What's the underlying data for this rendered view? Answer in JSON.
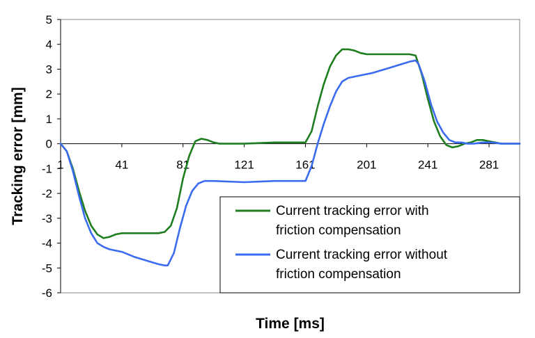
{
  "chart_data": {
    "type": "line",
    "xlabel": "Time [ms]",
    "ylabel": "Tracking error [mm]",
    "xlim": [
      1,
      301
    ],
    "ylim": [
      -6,
      5
    ],
    "x_ticks": [
      "1",
      "41",
      "81",
      "121",
      "161",
      "201",
      "241",
      "281"
    ],
    "y_ticks": [
      "5",
      "4",
      "3",
      "2",
      "1",
      "0",
      "-1",
      "-2",
      "-3",
      "-4",
      "-5",
      "-6"
    ],
    "grid": false,
    "legend_position": "bottom-right",
    "series": [
      {
        "name": "Current tracking error with friction compensation",
        "color": "#1e7d1e",
        "points": [
          [
            1,
            0
          ],
          [
            5,
            -0.3
          ],
          [
            9,
            -1.0
          ],
          [
            13,
            -1.9
          ],
          [
            17,
            -2.7
          ],
          [
            21,
            -3.3
          ],
          [
            25,
            -3.65
          ],
          [
            29,
            -3.8
          ],
          [
            33,
            -3.75
          ],
          [
            37,
            -3.65
          ],
          [
            41,
            -3.6
          ],
          [
            49,
            -3.6
          ],
          [
            57,
            -3.6
          ],
          [
            65,
            -3.6
          ],
          [
            69,
            -3.55
          ],
          [
            73,
            -3.3
          ],
          [
            77,
            -2.6
          ],
          [
            81,
            -1.4
          ],
          [
            85,
            -0.5
          ],
          [
            89,
            0.1
          ],
          [
            93,
            0.2
          ],
          [
            97,
            0.15
          ],
          [
            101,
            0.05
          ],
          [
            105,
            0.0
          ],
          [
            121,
            0.0
          ],
          [
            141,
            0.05
          ],
          [
            161,
            0.05
          ],
          [
            165,
            0.5
          ],
          [
            169,
            1.5
          ],
          [
            173,
            2.4
          ],
          [
            177,
            3.1
          ],
          [
            181,
            3.55
          ],
          [
            185,
            3.8
          ],
          [
            189,
            3.8
          ],
          [
            193,
            3.75
          ],
          [
            197,
            3.65
          ],
          [
            201,
            3.6
          ],
          [
            221,
            3.6
          ],
          [
            229,
            3.6
          ],
          [
            233,
            3.55
          ],
          [
            237,
            2.8
          ],
          [
            241,
            1.8
          ],
          [
            245,
            0.9
          ],
          [
            249,
            0.3
          ],
          [
            253,
            -0.05
          ],
          [
            257,
            -0.15
          ],
          [
            261,
            -0.1
          ],
          [
            265,
            0.0
          ],
          [
            269,
            0.05
          ],
          [
            273,
            0.15
          ],
          [
            277,
            0.15
          ],
          [
            281,
            0.1
          ],
          [
            285,
            0.05
          ],
          [
            289,
            0.0
          ],
          [
            301,
            0.0
          ]
        ]
      },
      {
        "name": "Current tracking error without friction compensation",
        "color": "#3a6bf0",
        "points": [
          [
            1,
            0
          ],
          [
            5,
            -0.3
          ],
          [
            9,
            -1.1
          ],
          [
            13,
            -2.1
          ],
          [
            17,
            -3.0
          ],
          [
            21,
            -3.6
          ],
          [
            25,
            -4.0
          ],
          [
            29,
            -4.15
          ],
          [
            33,
            -4.25
          ],
          [
            41,
            -4.35
          ],
          [
            49,
            -4.55
          ],
          [
            57,
            -4.7
          ],
          [
            65,
            -4.85
          ],
          [
            69,
            -4.9
          ],
          [
            71,
            -4.9
          ],
          [
            75,
            -4.4
          ],
          [
            79,
            -3.4
          ],
          [
            83,
            -2.5
          ],
          [
            87,
            -1.9
          ],
          [
            91,
            -1.6
          ],
          [
            95,
            -1.5
          ],
          [
            101,
            -1.5
          ],
          [
            121,
            -1.55
          ],
          [
            141,
            -1.5
          ],
          [
            161,
            -1.5
          ],
          [
            165,
            -0.9
          ],
          [
            169,
            0.0
          ],
          [
            173,
            0.8
          ],
          [
            177,
            1.5
          ],
          [
            181,
            2.1
          ],
          [
            185,
            2.5
          ],
          [
            189,
            2.65
          ],
          [
            197,
            2.75
          ],
          [
            205,
            2.85
          ],
          [
            213,
            3.0
          ],
          [
            221,
            3.15
          ],
          [
            229,
            3.3
          ],
          [
            233,
            3.35
          ],
          [
            235,
            3.2
          ],
          [
            239,
            2.5
          ],
          [
            243,
            1.6
          ],
          [
            247,
            0.9
          ],
          [
            251,
            0.45
          ],
          [
            255,
            0.15
          ],
          [
            259,
            0.05
          ],
          [
            263,
            0.05
          ],
          [
            267,
            0.0
          ],
          [
            271,
            0.0
          ],
          [
            277,
            0.05
          ],
          [
            283,
            0.05
          ],
          [
            289,
            0.0
          ],
          [
            301,
            0.0
          ]
        ]
      }
    ]
  }
}
